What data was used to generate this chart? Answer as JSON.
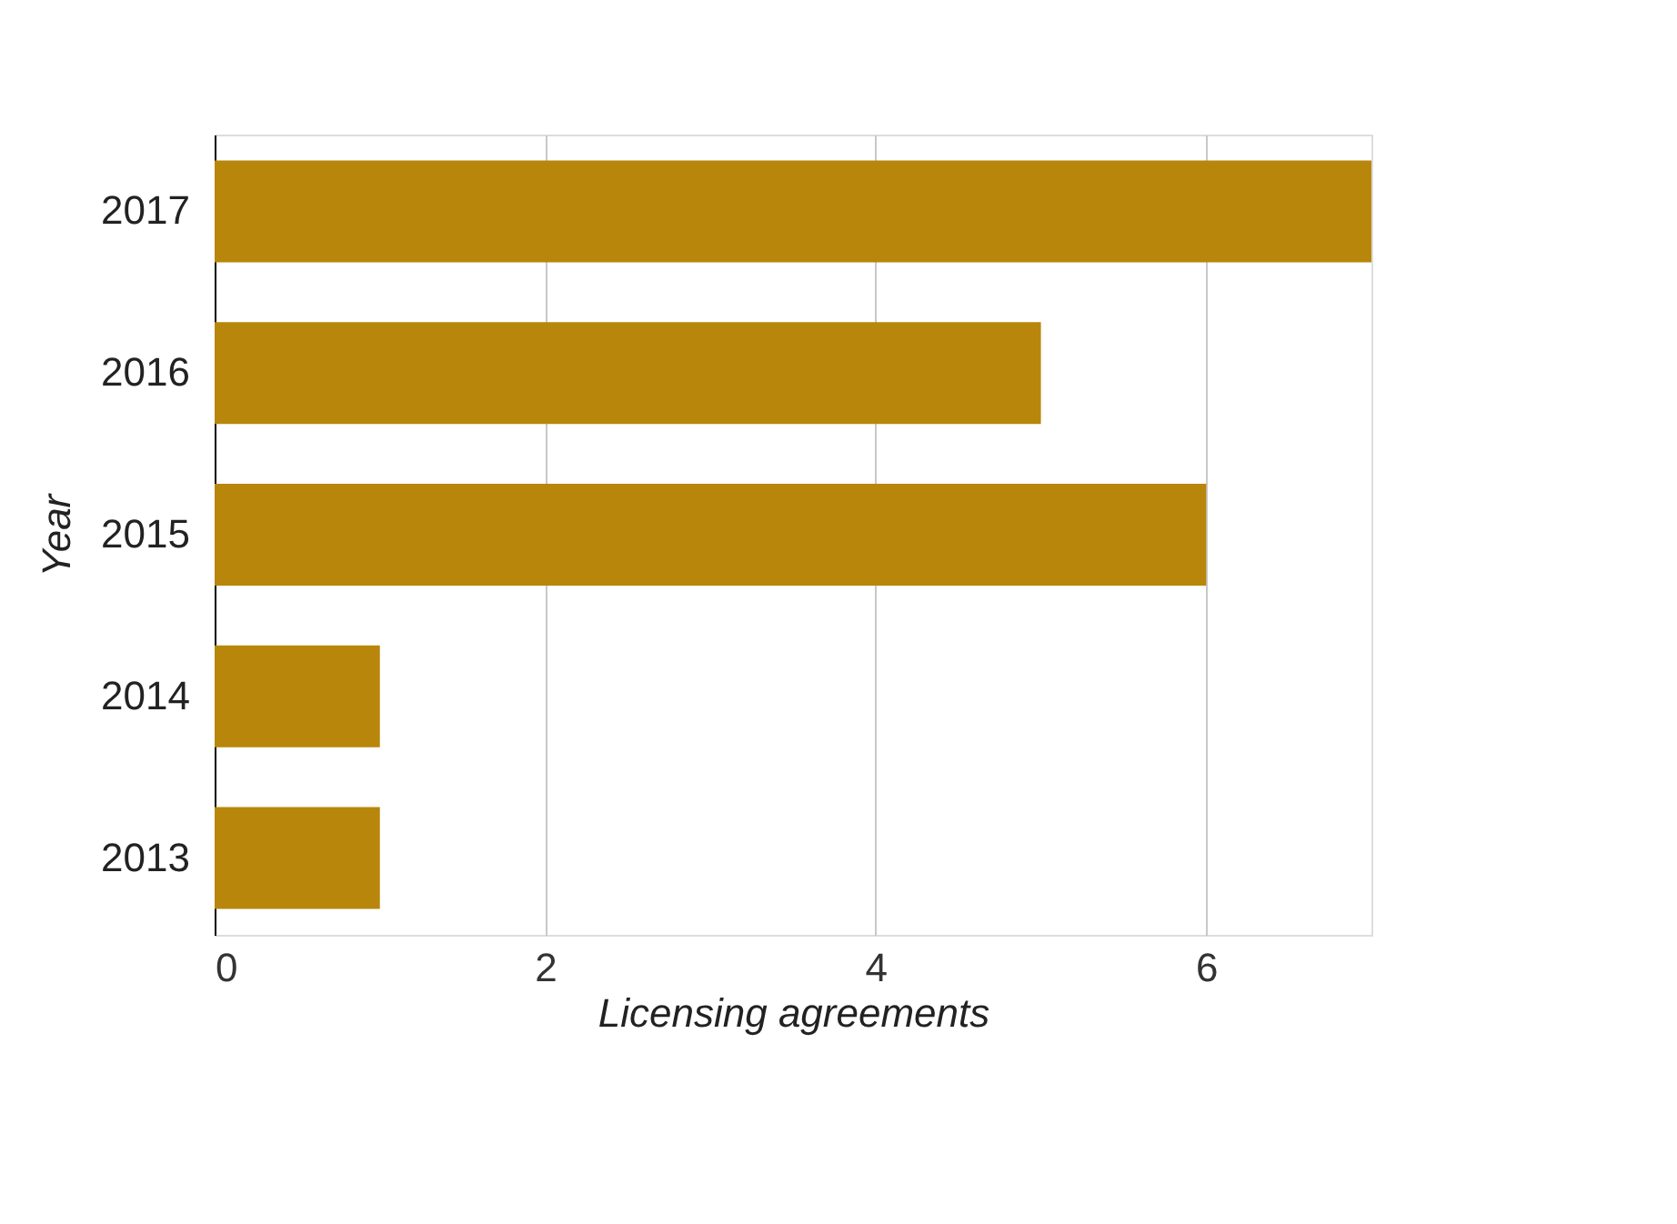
{
  "chart_data": {
    "type": "bar",
    "orientation": "horizontal",
    "xlabel": "Licensing agreements",
    "ylabel": "Year",
    "categories": [
      "2017",
      "2016",
      "2015",
      "2014",
      "2013"
    ],
    "values": [
      7,
      5,
      6,
      1,
      1
    ],
    "color": "#b8860b",
    "xlim": [
      0,
      7
    ],
    "xticks": [
      0,
      2,
      4,
      6
    ],
    "grid": "x"
  }
}
